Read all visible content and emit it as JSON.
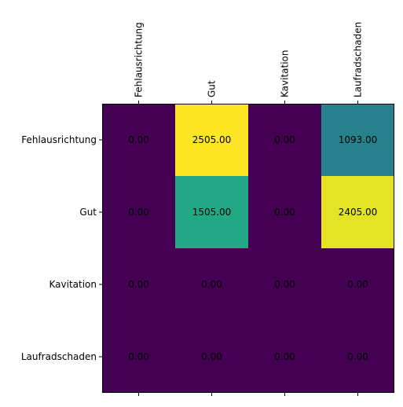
{
  "chart_data": {
    "type": "heatmap",
    "title": "",
    "xlabel": "",
    "ylabel": "",
    "x_categories": [
      "Fehlausrichtung",
      "Gut",
      "Kavitation",
      "Laufradschaden"
    ],
    "y_categories": [
      "Fehlausrichtung",
      "Gut",
      "Kavitation",
      "Laufradschaden"
    ],
    "x_tick_position": "top",
    "values": [
      [
        0,
        2505,
        0,
        1093
      ],
      [
        0,
        1505,
        0,
        2405
      ],
      [
        0,
        0,
        0,
        0
      ],
      [
        0,
        0,
        0,
        0
      ]
    ],
    "value_labels": [
      [
        "0.00",
        "2505.00",
        "0.00",
        "1093.00"
      ],
      [
        "0.00",
        "1505.00",
        "0.00",
        "2405.00"
      ],
      [
        "0.00",
        "0.00",
        "0.00",
        "0.00"
      ],
      [
        "0.00",
        "0.00",
        "0.00",
        "0.00"
      ]
    ],
    "colormap": "viridis",
    "vmin": 0,
    "vmax": 2505,
    "grid": false,
    "legend": "none"
  }
}
